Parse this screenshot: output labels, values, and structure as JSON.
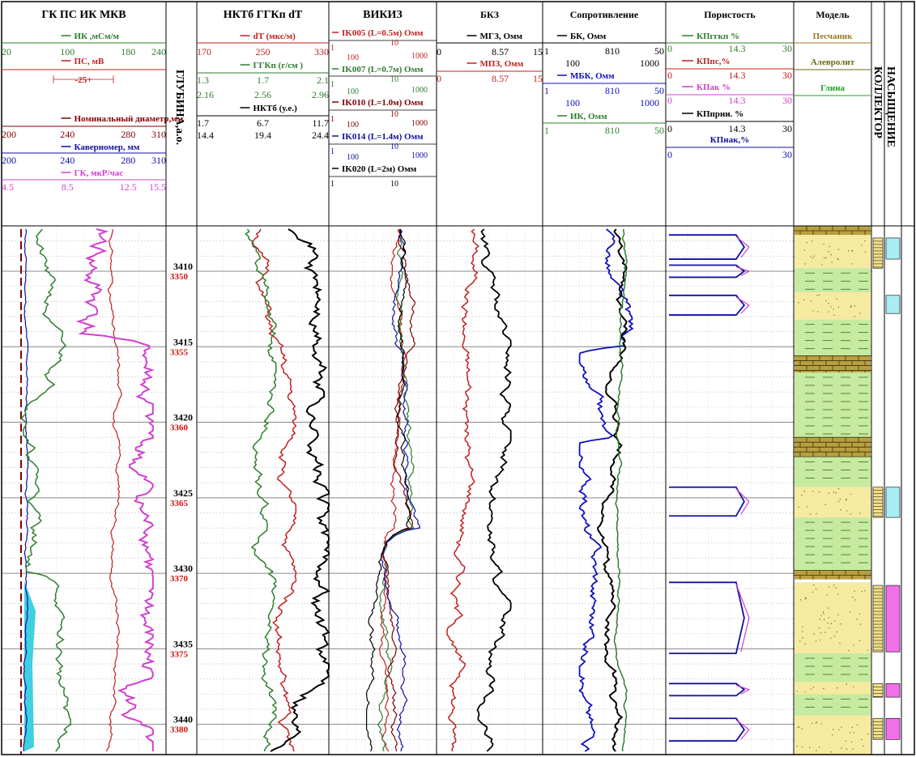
{
  "chart_data": {
    "type": "line",
    "depth": {
      "label": "ГЛУБИНА,а.о.",
      "md_start": 3407,
      "md_end": 3442,
      "md_ticks": [
        3410,
        3415,
        3420,
        3425,
        3430,
        3435,
        3440
      ],
      "tvd_ticks": [
        3350,
        3355,
        3360,
        3365,
        3370,
        3375,
        3380
      ]
    },
    "tracks": [
      {
        "title": "ГК ПС ИК МКВ",
        "headers": [
          {
            "label": "ИК ,мСм/м",
            "color": "#2e7d2e",
            "scale": [
              "20",
              "100",
              "180",
              "240"
            ]
          },
          {
            "label": "ПС, мВ",
            "color": "#c02020",
            "scale": []
          },
          {
            "label": "-25+",
            "color": "#c02020",
            "scale": []
          },
          {
            "label": "Номинальный диаметр,мм",
            "color": "#800000",
            "scale": [
              "200",
              "240",
              "280",
              "310"
            ]
          },
          {
            "label": "Каверномер, мм",
            "color": "#1010a0",
            "scale": [
              "200",
              "240",
              "280",
              "310"
            ]
          },
          {
            "label": "ГК, мкР/час",
            "color": "#d040d0",
            "scale": [
              "4.5",
              "8.5",
              "12.5",
              "15.5"
            ]
          }
        ]
      },
      {
        "title": "НКТб ГГКп dT",
        "headers": [
          {
            "label": "dT (мкс/м)",
            "color": "#c02020",
            "scale": [
              "170",
              "250",
              "330"
            ]
          },
          {
            "label": "ГГКп (г/см )",
            "color": "#2e7d2e",
            "scale": [
              "1.3",
              "1.7",
              "2.1"
            ]
          },
          {
            "label": "",
            "color": "#2e7d2e",
            "scale": [
              "2.16",
              "2.56",
              "2.96"
            ]
          },
          {
            "label": "НКТб (у.е.)",
            "color": "#000000",
            "scale": [
              "1.7",
              "6.7",
              "11.7"
            ]
          },
          {
            "label": "",
            "color": "#000000",
            "scale": [
              "14.4",
              "19.4",
              "24.4"
            ]
          }
        ]
      },
      {
        "title": "ВИКИЗ",
        "headers": [
          {
            "label": "IK005 (L=0.5м) Омм",
            "color": "#c02020",
            "scale": [
              "1",
              "10",
              "100",
              "1000"
            ]
          },
          {
            "label": "IK007 (L=0.7м) Омм",
            "color": "#2e7d2e",
            "scale": [
              "1",
              "10",
              "100",
              "1000"
            ]
          },
          {
            "label": "IK010 (L=1.0м) Омм",
            "color": "#800000",
            "scale": [
              "1",
              "10",
              "100",
              "1000"
            ]
          },
          {
            "label": "IK014 (L=1.4м) Омм",
            "color": "#1010a0",
            "scale": [
              "1",
              "10",
              "100",
              "1000"
            ]
          },
          {
            "label": "IK020 (L=2м) Омм",
            "color": "#000000",
            "scale": [
              "1",
              "10"
            ]
          }
        ]
      },
      {
        "title": "БКЗ",
        "headers": [
          {
            "label": "МГЗ, Омм",
            "color": "#000000",
            "scale": [
              "0",
              "8.57",
              "15"
            ]
          },
          {
            "label": "МПЗ, Омм",
            "color": "#c02020",
            "scale": [
              "0",
              "8.57",
              "15"
            ]
          }
        ]
      },
      {
        "title": "Сопротивление",
        "headers": [
          {
            "label": "БК, Омм",
            "color": "#000000",
            "scale": [
              "1",
              "8",
              "10",
              "50"
            ]
          },
          {
            "label": "",
            "color": "#000000",
            "scale": [
              "100",
              "1000"
            ]
          },
          {
            "label": "МБК, Омм",
            "color": "#1010c0",
            "scale": [
              "1",
              "8",
              "10",
              "50"
            ]
          },
          {
            "label": "",
            "color": "#1010c0",
            "scale": [
              "100",
              "1000"
            ]
          },
          {
            "label": "ИК, Омм",
            "color": "#2e7d2e",
            "scale": [
              "1",
              "8",
              "10",
              "50"
            ]
          }
        ]
      },
      {
        "title": "Пористость",
        "headers": [
          {
            "label": "КПггкп %",
            "color": "#2e7d2e",
            "scale": [
              "0",
              "14.3",
              "30"
            ]
          },
          {
            "label": "КПпс,%",
            "color": "#c02020",
            "scale": [
              "0",
              "14.3",
              "30"
            ]
          },
          {
            "label": "КПак %",
            "color": "#d040d0",
            "scale": [
              "0",
              "14.3",
              "30"
            ]
          },
          {
            "label": "КПпрни. %",
            "color": "#000000",
            "scale": [
              "0",
              "14.3",
              "30"
            ]
          },
          {
            "label": "КПнак,%",
            "color": "#1010a0",
            "scale": [
              "0",
              "30"
            ]
          }
        ]
      },
      {
        "title": "Модель",
        "headers": [
          {
            "label": "Песчаник",
            "color": "#9a7a20"
          },
          {
            "label": "Алевролит",
            "color": "#6a6a10"
          },
          {
            "label": "Глина",
            "color": "#20a020"
          }
        ]
      },
      {
        "title": "КОЛЛЕКТОР",
        "headers": []
      },
      {
        "title": "НАСЫЩЕНИЕ",
        "headers": []
      }
    ],
    "lithology": [
      {
        "type": "limestone",
        "top": 3407.0,
        "bottom": 3407.6
      },
      {
        "type": "sand",
        "top": 3407.6,
        "bottom": 3409.8
      },
      {
        "type": "clay",
        "top": 3409.8,
        "bottom": 3411.4
      },
      {
        "type": "sand",
        "top": 3411.4,
        "bottom": 3413.2
      },
      {
        "type": "clay",
        "top": 3413.2,
        "bottom": 3415.6
      },
      {
        "type": "limestone",
        "top": 3415.6,
        "bottom": 3416.7
      },
      {
        "type": "clay",
        "top": 3416.7,
        "bottom": 3421.0
      },
      {
        "type": "limestone",
        "top": 3421.0,
        "bottom": 3422.3
      },
      {
        "type": "clay",
        "top": 3422.3,
        "bottom": 3424.3
      },
      {
        "type": "sand",
        "top": 3424.3,
        "bottom": 3426.3
      },
      {
        "type": "clay",
        "top": 3426.3,
        "bottom": 3429.8
      },
      {
        "type": "limestone",
        "top": 3429.8,
        "bottom": 3430.4
      },
      {
        "type": "sand",
        "top": 3430.6,
        "bottom": 3435.3
      },
      {
        "type": "clay",
        "top": 3435.3,
        "bottom": 3437.2
      },
      {
        "type": "sand",
        "top": 3437.2,
        "bottom": 3438.0
      },
      {
        "type": "clay",
        "top": 3438.0,
        "bottom": 3439.4
      },
      {
        "type": "sand",
        "top": 3439.4,
        "bottom": 3442.0
      }
    ],
    "collector": [
      {
        "top": 3407.8,
        "bottom": 3409.8
      },
      {
        "top": 3424.3,
        "bottom": 3426.3
      },
      {
        "top": 3430.8,
        "bottom": 3435.2
      },
      {
        "top": 3437.3,
        "bottom": 3438.2
      },
      {
        "top": 3439.6,
        "bottom": 3441.0
      }
    ],
    "saturation": [
      {
        "top": 3407.8,
        "bottom": 3409.2,
        "fluid": "water"
      },
      {
        "top": 3411.6,
        "bottom": 3412.8,
        "fluid": "water"
      },
      {
        "top": 3424.3,
        "bottom": 3426.3,
        "fluid": "water"
      },
      {
        "top": 3430.8,
        "bottom": 3435.2,
        "fluid": "oil"
      },
      {
        "top": 3437.3,
        "bottom": 3438.2,
        "fluid": "oil"
      },
      {
        "top": 3439.6,
        "bottom": 3441.0,
        "fluid": "oil"
      }
    ],
    "colors": {
      "water": "#a8ecf4",
      "oil": "#f070e8",
      "sand": "#f6eaa0",
      "clay": "#c6eaa0",
      "limestone": "#b8a040",
      "caliper_fill": "#40d0e0"
    }
  }
}
